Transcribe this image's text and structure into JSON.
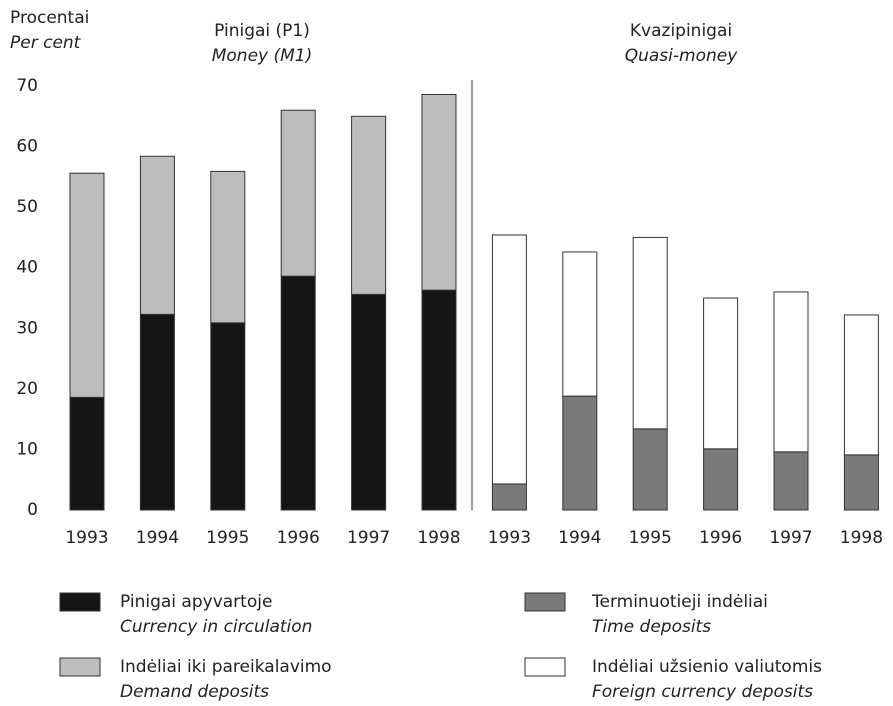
{
  "chart_data": {
    "type": "stacked_bar",
    "y_label": "Procentai",
    "y_label_en": "Per cent",
    "groups": [
      {
        "name": "Pinigai (P1)",
        "name_en": "Money (M1)"
      },
      {
        "name": "Kvazipinigai",
        "name_en": "Quasi-money"
      }
    ],
    "categories": [
      "1993",
      "1994",
      "1995",
      "1996",
      "1997",
      "1998",
      "1993",
      "1994",
      "1995",
      "1996",
      "1997",
      "1998"
    ],
    "series": [
      {
        "name": "Pinigai apyvartoje",
        "name_en": "Currency in circulation",
        "color": "#151515",
        "values": [
          18.6,
          32.3,
          30.9,
          38.6,
          35.6,
          36.3,
          null,
          null,
          null,
          null,
          null,
          null
        ]
      },
      {
        "name": "Indėliai iki pareikalavimo",
        "name_en": "Demand deposits",
        "color": "#bdbdbd",
        "values": [
          37.0,
          26.1,
          25.0,
          27.4,
          29.4,
          32.3,
          null,
          null,
          null,
          null,
          null,
          null
        ]
      },
      {
        "name": "Terminuotieji indėliai",
        "name_en": "Time deposits",
        "color": "#7a7a7a",
        "values": [
          null,
          null,
          null,
          null,
          null,
          null,
          4.3,
          18.8,
          13.4,
          10.1,
          9.6,
          9.1
        ]
      },
      {
        "name": "Indėliai užsienio valiutomis",
        "name_en": "Foreign currency deposits",
        "color": "#ffffff",
        "values": [
          null,
          null,
          null,
          null,
          null,
          null,
          41.1,
          23.8,
          31.6,
          24.9,
          26.4,
          23.1
        ]
      }
    ],
    "ylim": [
      0,
      70
    ],
    "yticks": [
      0,
      10,
      20,
      30,
      40,
      50,
      60,
      70
    ]
  }
}
